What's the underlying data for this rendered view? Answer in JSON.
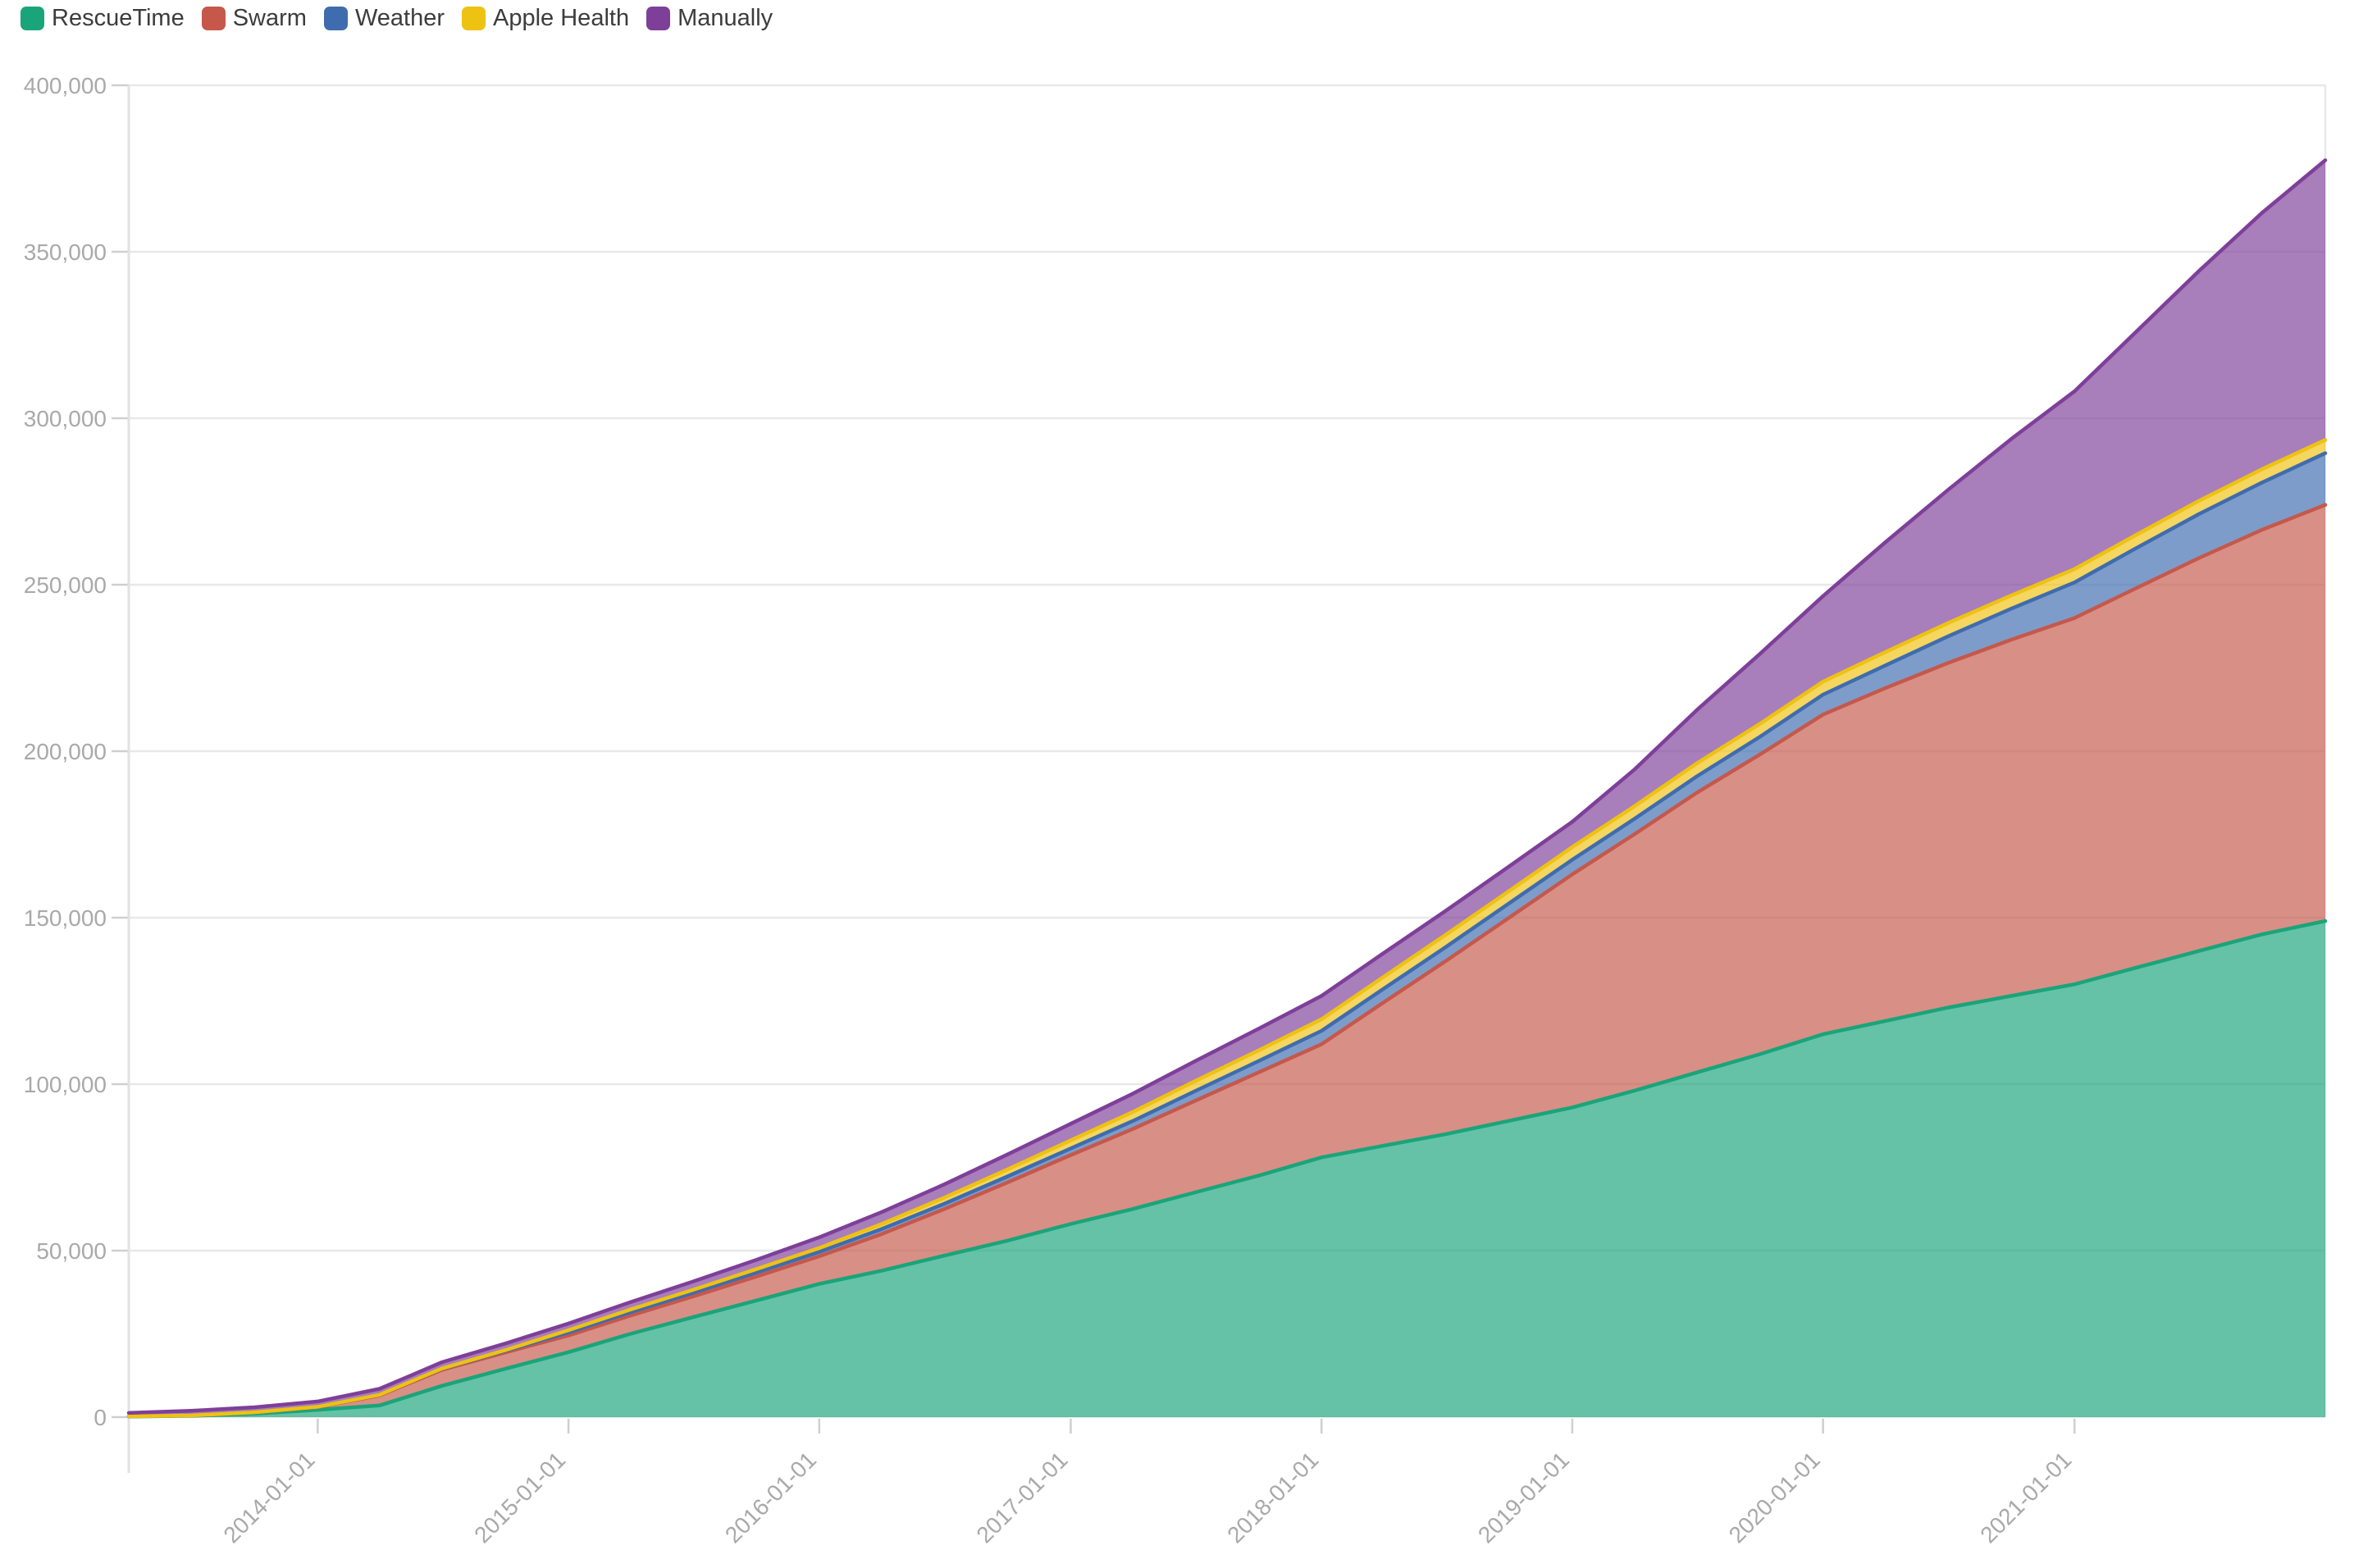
{
  "chart_data": {
    "type": "area",
    "stacked": true,
    "title": "",
    "xlabel": "",
    "ylabel": "",
    "grid": true,
    "legend_position": "top-left",
    "ylim": [
      0,
      400000
    ],
    "y_tick_step": 50000,
    "y_tick_labels": [
      "0",
      "50,000",
      "100,000",
      "150,000",
      "200,000",
      "250,000",
      "300,000",
      "350,000",
      "400,000"
    ],
    "x_tick_labels": [
      "2014-01-01",
      "2015-01-01",
      "2016-01-01",
      "2017-01-01",
      "2018-01-01",
      "2019-01-01",
      "2020-01-01",
      "2021-01-01"
    ],
    "x": [
      "2013-04-01",
      "2013-07-01",
      "2013-10-01",
      "2014-01-01",
      "2014-04-01",
      "2014-07-01",
      "2014-10-01",
      "2015-01-01",
      "2015-04-01",
      "2015-07-01",
      "2015-10-01",
      "2016-01-01",
      "2016-04-01",
      "2016-07-01",
      "2016-10-01",
      "2017-01-01",
      "2017-04-01",
      "2017-07-01",
      "2017-10-01",
      "2018-01-01",
      "2018-04-01",
      "2018-07-01",
      "2018-10-01",
      "2019-01-01",
      "2019-04-01",
      "2019-07-01",
      "2019-10-01",
      "2020-01-01",
      "2020-04-01",
      "2020-07-01",
      "2020-10-01",
      "2021-01-01",
      "2021-04-01",
      "2021-07-01",
      "2021-10-01",
      "2022-01-01"
    ],
    "series": [
      {
        "name": "RescueTime",
        "color": "#1aa47a",
        "values": [
          200,
          400,
          1000,
          2200,
          3500,
          9400,
          14500,
          19500,
          25000,
          30000,
          35000,
          40000,
          44000,
          48500,
          53000,
          58000,
          62500,
          67500,
          72500,
          78000,
          81500,
          85000,
          89000,
          93000,
          98000,
          103500,
          109000,
          115000,
          119000,
          123000,
          126500,
          130000,
          135000,
          140000,
          145000,
          149000
        ]
      },
      {
        "name": "Swarm",
        "color": "#c5584b",
        "values": [
          50,
          100,
          400,
          800,
          3000,
          4800,
          4900,
          5000,
          5500,
          6200,
          7200,
          8300,
          11000,
          14000,
          17500,
          20700,
          24000,
          27500,
          31000,
          34000,
          43000,
          52000,
          61000,
          70000,
          77000,
          84000,
          90000,
          96000,
          100000,
          103500,
          107000,
          110000,
          114000,
          118000,
          121500,
          125000
        ]
      },
      {
        "name": "Weather",
        "color": "#3f6cae",
        "values": [
          0,
          0,
          50,
          100,
          200,
          300,
          500,
          900,
          1000,
          1100,
          1200,
          1300,
          1500,
          1600,
          1800,
          2000,
          2400,
          2900,
          3400,
          4000,
          4100,
          4200,
          4300,
          4400,
          4600,
          4900,
          5300,
          6000,
          6800,
          8000,
          9300,
          10700,
          12000,
          13200,
          14200,
          15500
        ]
      },
      {
        "name": "Apple Health",
        "color": "#eec212",
        "values": [
          0,
          0,
          0,
          0,
          0,
          100,
          200,
          700,
          800,
          900,
          1000,
          1200,
          1500,
          1800,
          2100,
          2400,
          2700,
          3000,
          3200,
          3500,
          3600,
          3700,
          3700,
          3800,
          3800,
          3900,
          3900,
          3900,
          4000,
          4000,
          4000,
          4000,
          4000,
          4000,
          4000,
          4000
        ]
      },
      {
        "name": "Manually",
        "color": "#7e3f99",
        "values": [
          1000,
          1400,
          1500,
          1600,
          1800,
          1900,
          2000,
          2000,
          2200,
          2500,
          2800,
          3200,
          3600,
          4000,
          4500,
          5000,
          5500,
          6000,
          6500,
          7000,
          7100,
          7200,
          7400,
          7600,
          11000,
          16000,
          21000,
          25700,
          33000,
          40000,
          47000,
          53400,
          61000,
          69000,
          77000,
          84000
        ]
      }
    ]
  }
}
